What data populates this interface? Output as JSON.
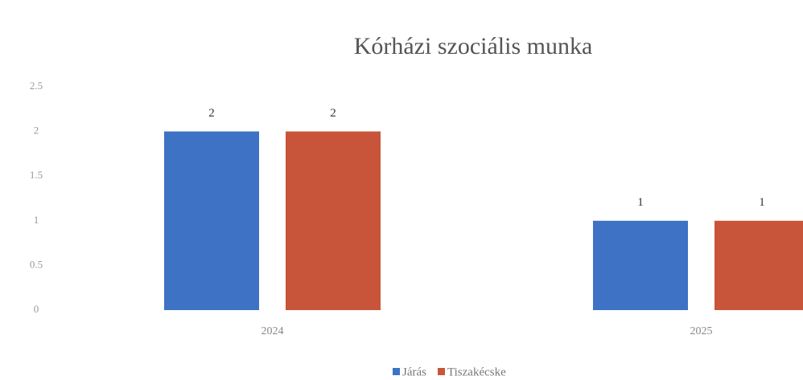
{
  "chart_data": {
    "type": "bar",
    "title": "Kórházi szociális munka",
    "categories": [
      "2024",
      "2025"
    ],
    "series": [
      {
        "name": "Járás",
        "color": "#3d72c4",
        "values": [
          2,
          1
        ]
      },
      {
        "name": "Tiszakécske",
        "color": "#c8553a",
        "values": [
          2,
          1
        ]
      }
    ],
    "ylim": [
      0,
      2.5
    ],
    "yticks": [
      0,
      0.5,
      1,
      1.5,
      2,
      2.5
    ],
    "grid": false,
    "legend": "bottom"
  }
}
